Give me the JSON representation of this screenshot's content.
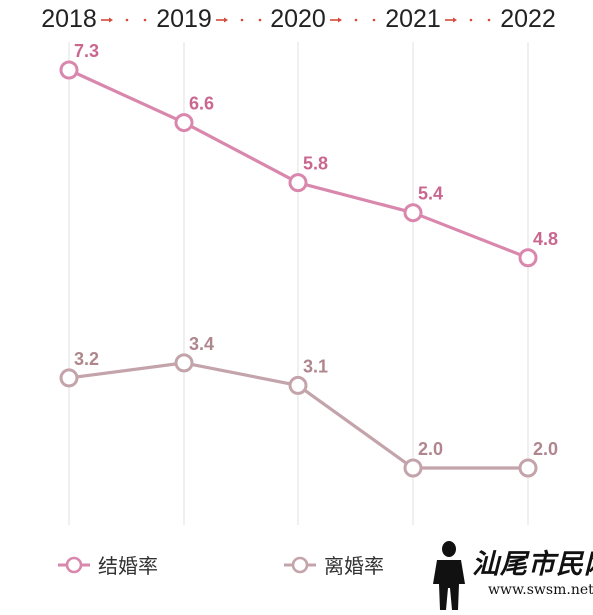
{
  "chart_data": {
    "type": "line",
    "x": [
      "2018",
      "2019",
      "2020",
      "2021",
      "2022"
    ],
    "series": [
      {
        "name": "结婚率",
        "values": [
          7.3,
          6.6,
          5.8,
          5.4,
          4.8
        ],
        "color": "#d987ad",
        "label_color": "#c9678f"
      },
      {
        "name": "离婚率",
        "values": [
          3.2,
          3.4,
          3.1,
          2.0,
          2.0
        ],
        "color": "#c4a4ab",
        "label_color": "#b0868e"
      }
    ],
    "title": "",
    "xlabel": "",
    "ylabel": "",
    "grid": "vertical",
    "legend": "bottom-left",
    "arrow_color": "#d44a3a"
  },
  "watermark": {
    "text": "汕尾市民网",
    "url": "www.swsm.net"
  }
}
